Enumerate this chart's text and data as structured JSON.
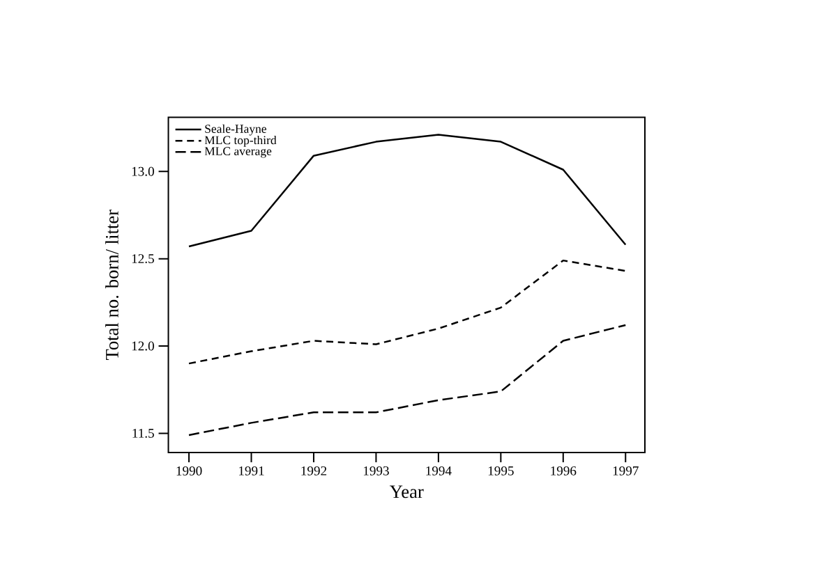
{
  "chart_data": {
    "type": "line",
    "xlabel": "Year",
    "ylabel": "Total no. born/ litter",
    "x": [
      1990,
      1991,
      1992,
      1993,
      1994,
      1995,
      1996,
      1997
    ],
    "series": [
      {
        "name": "Seale-Hayne",
        "color": "#000000",
        "line_style": "solid",
        "values": [
          12.57,
          12.66,
          13.09,
          13.17,
          13.21,
          13.17,
          13.01,
          12.58
        ]
      },
      {
        "name": "MLC top-third",
        "color": "#000000",
        "line_style": "dashed",
        "values": [
          11.9,
          11.97,
          12.03,
          12.01,
          12.1,
          12.22,
          12.49,
          12.43
        ]
      },
      {
        "name": "MLC average",
        "color": "#000000",
        "line_style": "dashed",
        "values": [
          11.49,
          11.56,
          11.62,
          11.62,
          11.69,
          11.74,
          12.03,
          12.12
        ]
      }
    ],
    "xlim": [
      1989.67,
      1997.31
    ],
    "ylim": [
      11.39,
      13.31
    ],
    "xticks": [
      1990,
      1991,
      1992,
      1993,
      1994,
      1995,
      1996,
      1997
    ],
    "yticks": [
      {
        "value": 11.5,
        "label": "11.5"
      },
      {
        "value": 12,
        "label": "12.0"
      },
      {
        "value": 12.5,
        "label": "12.5"
      },
      {
        "value": 13,
        "label": "13.0"
      }
    ],
    "legend": "top left",
    "marker": "none",
    "grid": false
  }
}
